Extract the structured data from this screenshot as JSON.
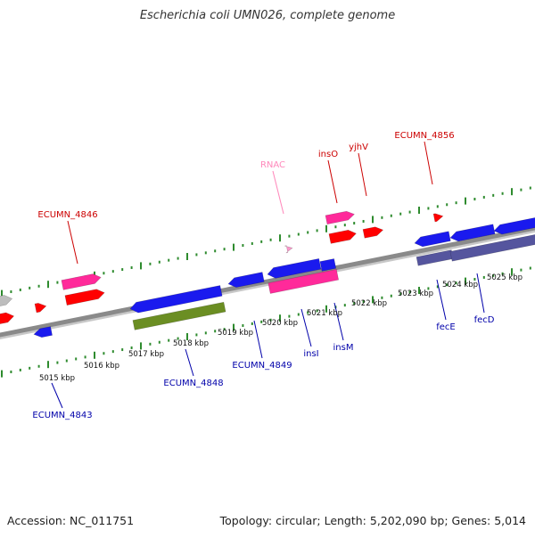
{
  "title": "Escherichia coli UMN026, complete genome",
  "footer": {
    "accession": "Accession: NC_011751",
    "summary": "Topology: circular; Length: 5,202,090 bp; Genes: 5,014"
  },
  "colors": {
    "backbone": "#8a8a8a",
    "ticks": "#2e8b2e",
    "forward_label": "#cc0000",
    "reverse_label": "#0000aa",
    "rna_label": "#ff88bb",
    "gene_red": "#ff0000",
    "gene_pink": "#ff2a9a",
    "gene_blue": "#1a1aee",
    "gene_olive": "#6b8e23",
    "gene_slate": "#55559e",
    "gene_grey": "#bdbdbd",
    "rna_pink": "#ff99cc"
  },
  "scale_labels": [
    "5015 kbp",
    "5016 kbp",
    "5017 kbp",
    "5018 kbp",
    "5019 kbp",
    "5020 kbp",
    "5021 kbp",
    "5022 kbp",
    "5023 kbp",
    "5024 kbp",
    "5025 kbp"
  ],
  "gene_labels": {
    "forward": [
      "ECUMN_4846",
      "RNAC",
      "insO",
      "yjhV",
      "ECUMN_4856"
    ],
    "reverse": [
      "ECUMN_4843",
      "ECUMN_4848",
      "ECUMN_4849",
      "insI",
      "insM",
      "fecE",
      "fecD"
    ]
  }
}
